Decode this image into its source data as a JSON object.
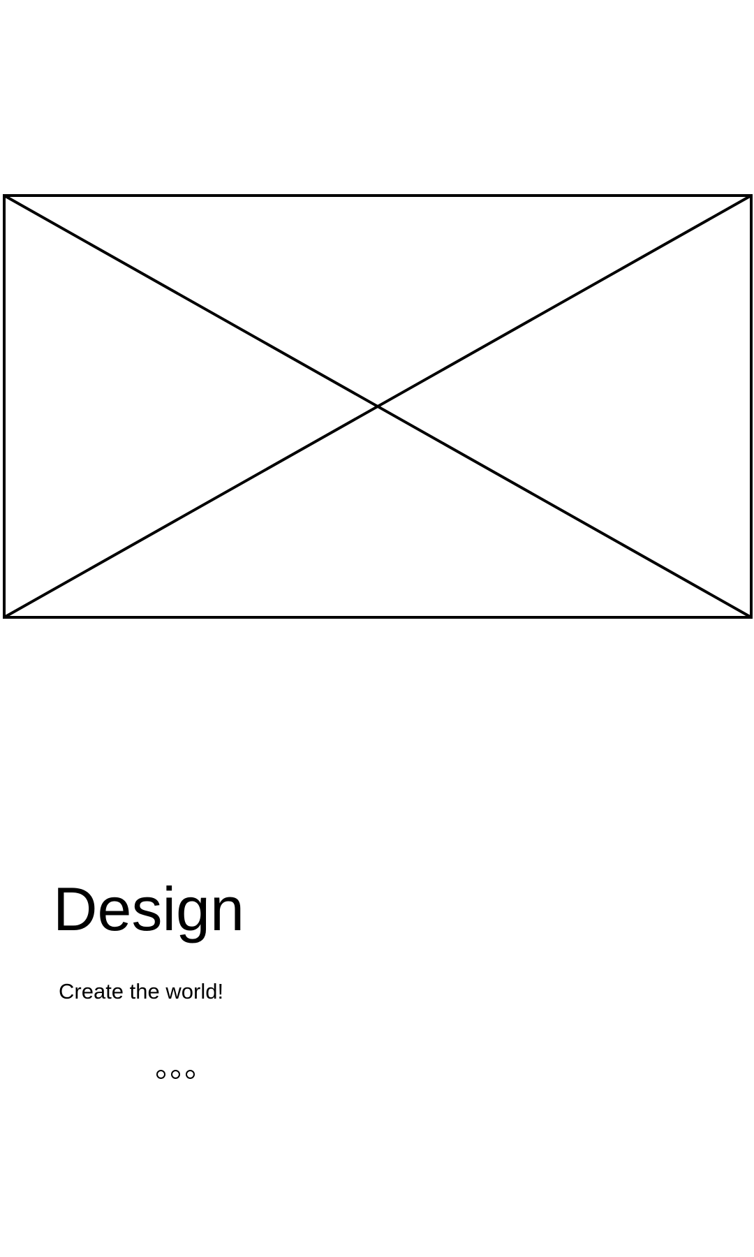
{
  "onboarding": {
    "image_placeholder": "image-placeholder",
    "title": "Design",
    "subtitle": "Create the world!",
    "pager": {
      "dot_count": 3,
      "icon": "pagination-dots"
    }
  },
  "colors": {
    "background": "#ffffff",
    "foreground": "#000000"
  }
}
